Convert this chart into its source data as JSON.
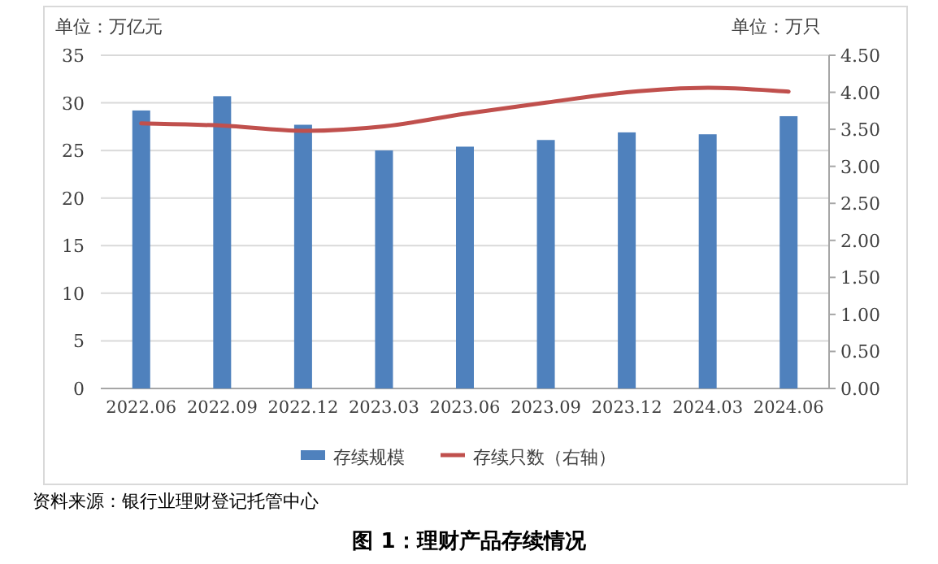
{
  "chart_data": {
    "type": "bar",
    "title": "图 1：理财产品存续情况",
    "ylabel": "单位：万亿元",
    "y2label": "单位：万只",
    "categories": [
      "2022.06",
      "2022.09",
      "2022.12",
      "2023.03",
      "2023.06",
      "2023.09",
      "2023.12",
      "2024.03",
      "2024.06"
    ],
    "series": [
      {
        "name": "存续规模",
        "color": "#4f81bd",
        "values": [
          29.2,
          30.7,
          27.7,
          25.0,
          25.4,
          26.1,
          26.9,
          26.7,
          28.6
        ]
      },
      {
        "name": "存续只数（右轴）",
        "type": "line",
        "axis": "y2",
        "color": "#c0504d",
        "values": [
          3.58,
          3.55,
          3.48,
          3.54,
          3.71,
          3.86,
          4.0,
          4.06,
          4.01
        ]
      }
    ],
    "ylim": [
      0,
      35
    ],
    "yticks": [
      0,
      5,
      10,
      15,
      20,
      25,
      30,
      35
    ],
    "y2lim": [
      0,
      4.5
    ],
    "y2ticks": [
      {
        "value": 0,
        "label": "0.00"
      },
      {
        "value": 0.5,
        "label": "0.50"
      },
      {
        "value": 1,
        "label": "1.00"
      },
      {
        "value": 1.5,
        "label": "1.50"
      },
      {
        "value": 2,
        "label": "2.00"
      },
      {
        "value": 2.5,
        "label": "2.50"
      },
      {
        "value": 3,
        "label": "3.00"
      },
      {
        "value": 3.5,
        "label": "3.50"
      },
      {
        "value": 4,
        "label": "4.00"
      },
      {
        "value": 4.5,
        "label": "4.50"
      }
    ],
    "grid": "y",
    "legend": "bottom",
    "annotations": [
      "资料来源：银行业理财登记托管中心"
    ]
  }
}
